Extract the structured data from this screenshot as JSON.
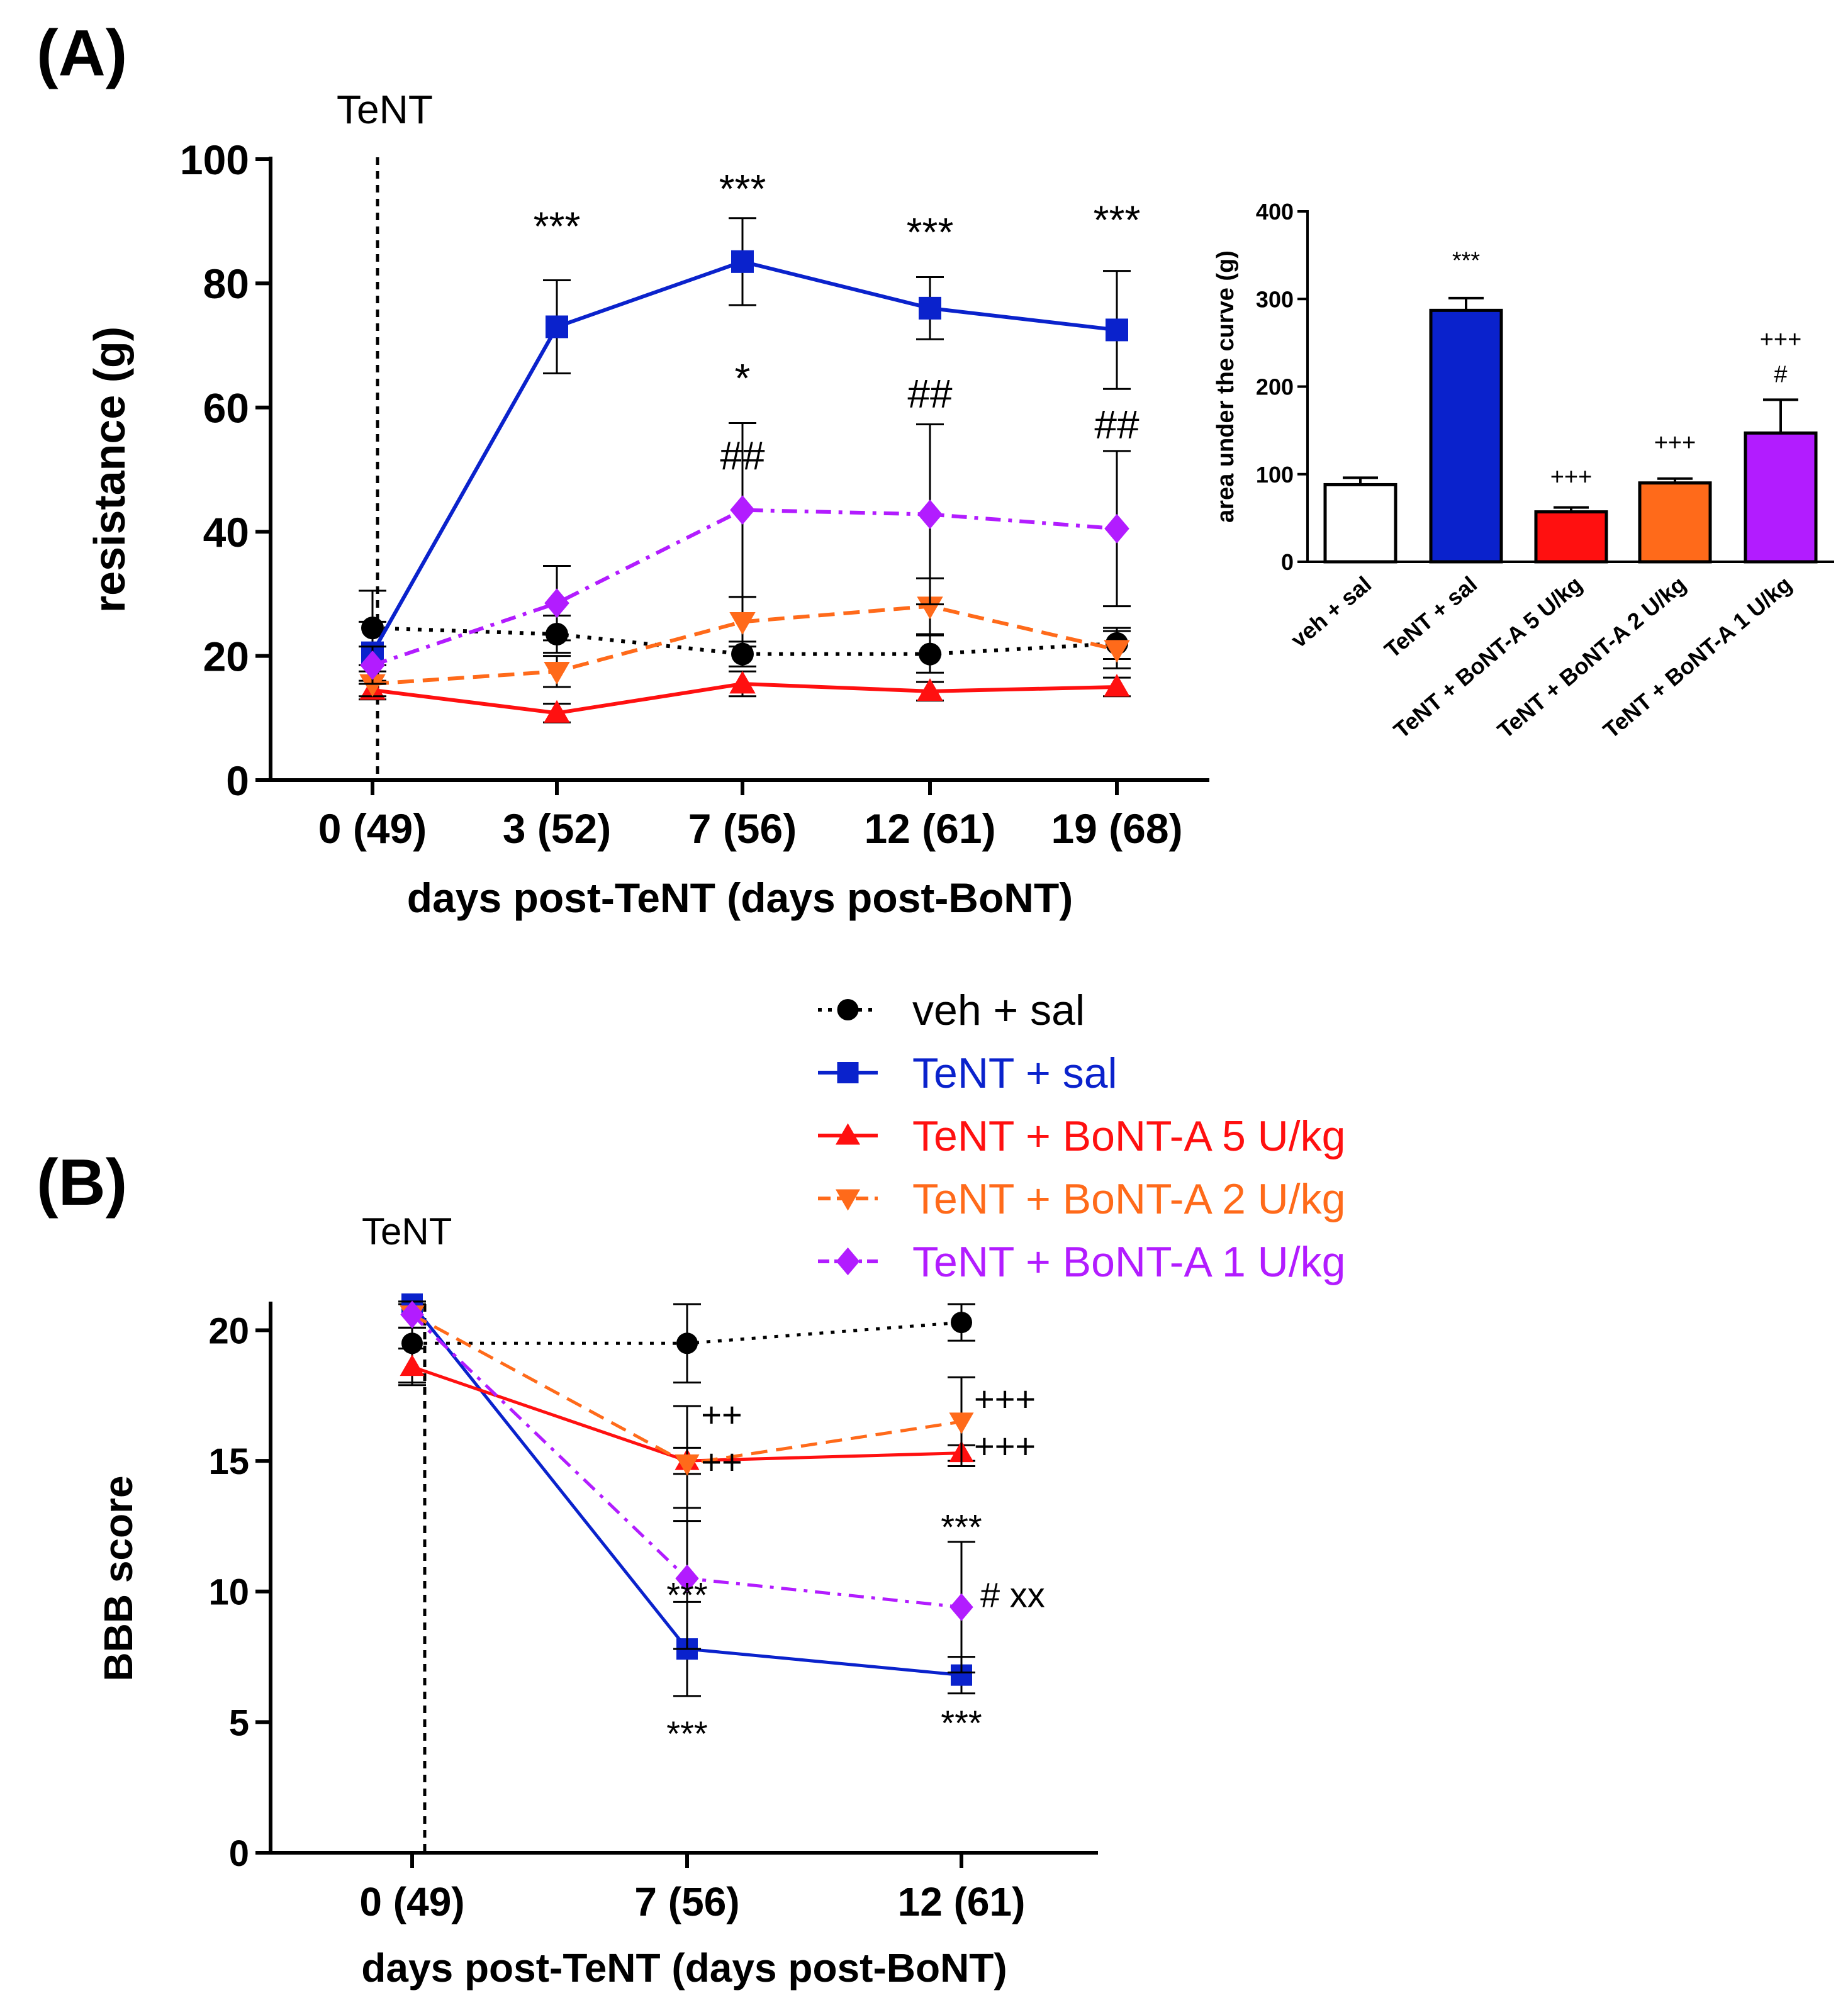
{
  "chart_data": [
    {
      "panel": "(A)",
      "type": "line",
      "ylabel": "resistance (g)",
      "xlabel": "days post-TeNT (days post-BoNT)",
      "categories": [
        "0 (49)",
        "3 (52)",
        "7 (56)",
        "12 (61)",
        "19 (68)"
      ],
      "x": [
        0,
        3,
        7,
        12,
        19
      ],
      "ylim": [
        0,
        100
      ],
      "yticks": [
        0,
        20,
        40,
        60,
        80,
        100
      ],
      "event_label": "TeNT",
      "series": [
        {
          "name": "veh + sal",
          "color": "#000000",
          "marker": "circle",
          "dash": "dotted",
          "values": [
            24.5,
            23.5,
            20.3,
            20.3,
            22.0
          ],
          "err": [
            6,
            3,
            2,
            3,
            2.5
          ]
        },
        {
          "name": "TeNT + sal",
          "color": "#0a22cc",
          "marker": "square",
          "dash": "solid",
          "values": [
            20.5,
            73.0,
            83.5,
            76.0,
            72.5
          ],
          "err": [
            5,
            7.5,
            7,
            5,
            9.5
          ]
        },
        {
          "name": "TeNT + BoNT-A 5 U/kg",
          "color": "#ff1010",
          "marker": "triangle-up",
          "dash": "solid",
          "values": [
            14.5,
            10.8,
            15.5,
            14.3,
            15.0
          ],
          "err": [
            1.5,
            1.5,
            2,
            1.5,
            1.5
          ]
        },
        {
          "name": "TeNT + BoNT-A 2 U/kg",
          "color": "#ff6a1a",
          "marker": "triangle-down",
          "dash": "dashed",
          "values": [
            15.5,
            17.5,
            25.5,
            28.0,
            21.0
          ],
          "err": [
            2,
            2.5,
            4,
            4.5,
            3
          ]
        },
        {
          "name": "TeNT + BoNT-A 1 U/kg",
          "color": "#b21cff",
          "marker": "diamond",
          "dash": "dashdot",
          "values": [
            18.5,
            28.5,
            43.5,
            42.8,
            40.5
          ],
          "err": [
            3,
            6,
            14,
            14.5,
            12.5
          ]
        }
      ],
      "annotations": [
        {
          "text": "***",
          "x": 3,
          "y": 87
        },
        {
          "text": "***",
          "x": 7,
          "y": 93
        },
        {
          "text": "***",
          "x": 12,
          "y": 86
        },
        {
          "text": "***",
          "x": 19,
          "y": 88
        },
        {
          "text": "*",
          "x": 7,
          "y": 62.5
        },
        {
          "text": "##",
          "x": 7,
          "y": 50
        },
        {
          "text": "##",
          "x": 12,
          "y": 60
        },
        {
          "text": "##",
          "x": 19,
          "y": 55
        }
      ],
      "inset": {
        "type": "bar",
        "ylabel": "area under the curve (g)",
        "ylim": [
          0,
          400
        ],
        "yticks": [
          0,
          100,
          200,
          300,
          400
        ],
        "categories": [
          "veh + sal",
          "TeNT + sal",
          "TeNT + BoNT-A 5 U/kg",
          "TeNT + BoNT-A 2 U/kg",
          "TeNT + BoNT-A 1 U/kg"
        ],
        "values": [
          88,
          287,
          57,
          90,
          147
        ],
        "err": [
          8,
          14,
          5,
          5,
          38
        ],
        "colors": [
          "#ffffff",
          "#0a22cc",
          "#ff1010",
          "#ff6a1a",
          "#b21cff"
        ],
        "annotations": [
          {
            "text": "***",
            "index": 1,
            "y": 335
          },
          {
            "text": "+++",
            "index": 2,
            "y": 88
          },
          {
            "text": "+++",
            "index": 3,
            "y": 127
          },
          {
            "text": "+++",
            "index": 4,
            "y": 245
          },
          {
            "text": "#",
            "index": 4,
            "y": 205
          }
        ]
      }
    },
    {
      "panel": "(B)",
      "type": "line",
      "ylabel": "BBB score",
      "xlabel": "days post-TeNT (days post-BoNT)",
      "categories": [
        "0 (49)",
        "7 (56)",
        "12 (61)"
      ],
      "x": [
        0,
        7,
        12
      ],
      "ylim": [
        0,
        21
      ],
      "yticks": [
        0,
        5,
        10,
        15,
        20
      ],
      "event_label": "TeNT",
      "series": [
        {
          "name": "veh + sal",
          "color": "#000000",
          "marker": "circle",
          "dash": "dotted",
          "values": [
            19.5,
            19.5,
            20.3
          ],
          "err": [
            1.5,
            1.5,
            0.7
          ]
        },
        {
          "name": "TeNT + sal",
          "color": "#0a22cc",
          "marker": "square",
          "dash": "solid",
          "values": [
            21.0,
            7.8,
            6.8
          ],
          "err": [
            0,
            1.8,
            0.7
          ]
        },
        {
          "name": "TeNT + BoNT-A 5 U/kg",
          "color": "#ff1010",
          "marker": "triangle-up",
          "dash": "solid",
          "values": [
            18.6,
            15.0,
            15.3
          ],
          "err": [
            0.7,
            0.5,
            0.3
          ]
        },
        {
          "name": "TeNT + BoNT-A 2 U/kg",
          "color": "#ff6a1a",
          "marker": "triangle-down",
          "dash": "dashed",
          "values": [
            20.6,
            14.9,
            16.5
          ],
          "err": [
            0.5,
            2.2,
            1.7
          ]
        },
        {
          "name": "TeNT + BoNT-A 1 U/kg",
          "color": "#b21cff",
          "marker": "diamond",
          "dash": "dashdot",
          "values": [
            20.6,
            10.5,
            9.4
          ],
          "err": [
            0.5,
            2.7,
            2.5
          ]
        }
      ],
      "annotations": [
        {
          "text": "++",
          "x": 7,
          "y": 16.3
        },
        {
          "text": "++",
          "x": 7,
          "y": 14.5
        },
        {
          "text": "+++",
          "x": 12,
          "y": 16.9
        },
        {
          "text": "+++",
          "x": 12,
          "y": 15.1
        },
        {
          "text": "***",
          "x": 7,
          "y": 9.4
        },
        {
          "text": "***",
          "x": 12,
          "y": 12.0
        },
        {
          "text": "# xx",
          "x": 12,
          "y": 9.4
        },
        {
          "text": "***",
          "x": 7,
          "y": 4.1
        },
        {
          "text": "***",
          "x": 12,
          "y": 4.5
        }
      ]
    }
  ]
}
